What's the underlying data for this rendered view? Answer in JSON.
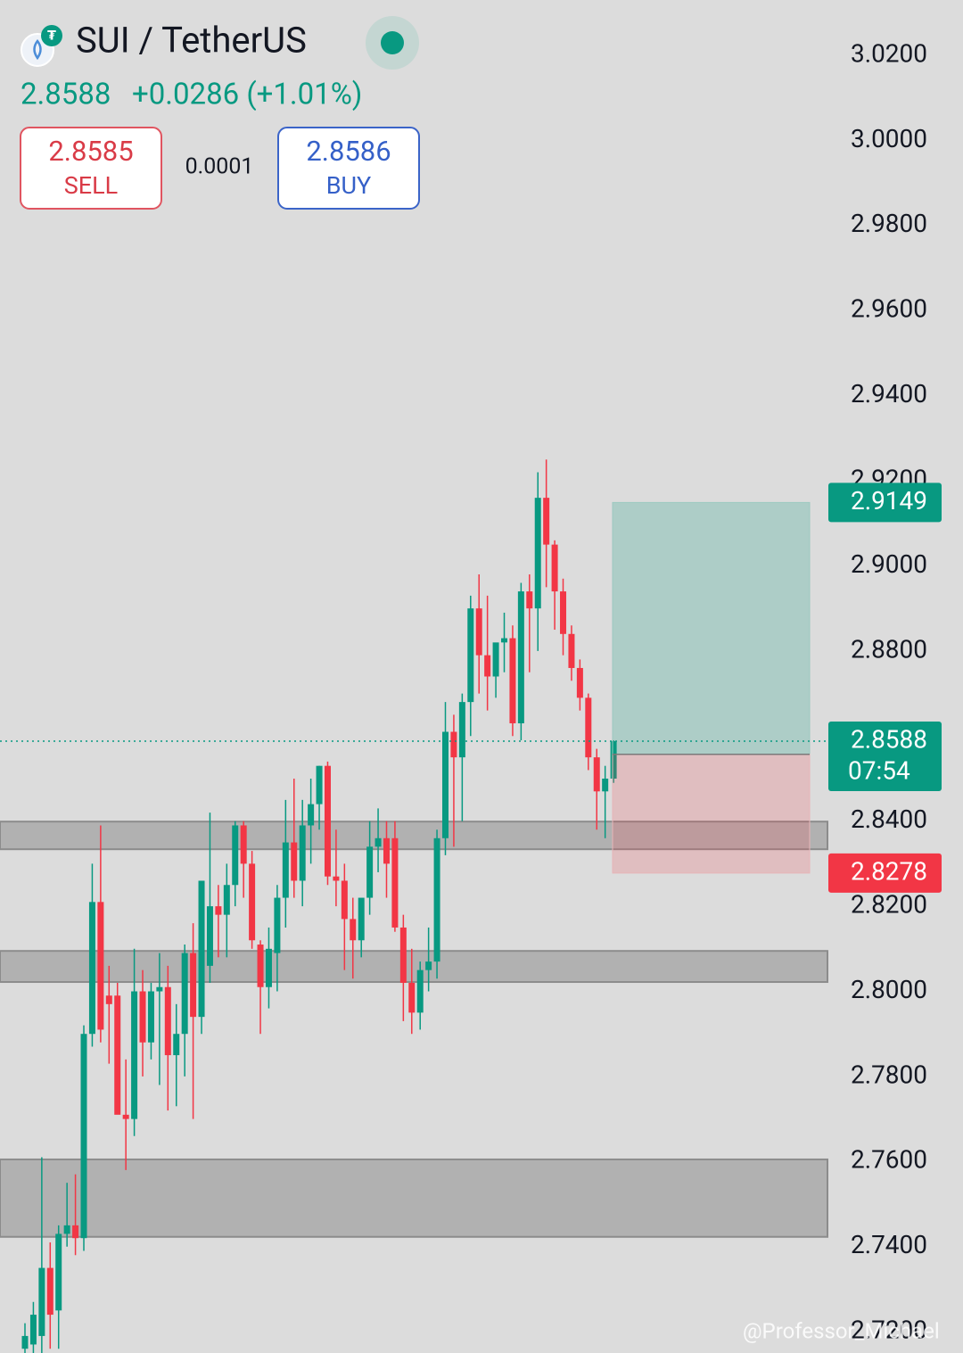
{
  "header": {
    "title": "SUI / TetherUS",
    "last_price": 2.8588,
    "change": "+0.0286 (+1.01%)",
    "sell_price": 2.8585,
    "sell_label": "SELL",
    "spread": "0.0001",
    "buy_price": 2.8586,
    "buy_label": "BUY"
  },
  "chart_data": {
    "type": "candlestick",
    "up_color": "#089981",
    "down_color": "#f23645",
    "ylim": [
      2.715,
      3.033
    ],
    "yticks": [
      {
        "value": 3.02,
        "label": "3.0200"
      },
      {
        "value": 3.0,
        "label": "3.0000"
      },
      {
        "value": 2.98,
        "label": "2.9800"
      },
      {
        "value": 2.96,
        "label": "2.9600"
      },
      {
        "value": 2.94,
        "label": "2.9400"
      },
      {
        "value": 2.92,
        "label": "2.9200"
      },
      {
        "value": 2.9,
        "label": "2.9000"
      },
      {
        "value": 2.88,
        "label": "2.8800"
      },
      {
        "value": 2.86,
        "label": "2.8600"
      },
      {
        "value": 2.84,
        "label": "2.8400"
      },
      {
        "value": 2.82,
        "label": "2.8200"
      },
      {
        "value": 2.8,
        "label": "2.8000"
      },
      {
        "value": 2.78,
        "label": "2.7800"
      },
      {
        "value": 2.76,
        "label": "2.7600"
      },
      {
        "value": 2.74,
        "label": "2.7400"
      },
      {
        "value": 2.72,
        "label": "2.7200"
      }
    ],
    "candles": [
      [
        2.716,
        2.722,
        2.714,
        2.719
      ],
      [
        2.717,
        2.727,
        2.714,
        2.724
      ],
      [
        2.719,
        2.761,
        2.715,
        2.735
      ],
      [
        2.735,
        2.741,
        2.716,
        2.724
      ],
      [
        2.725,
        2.745,
        2.716,
        2.743
      ],
      [
        2.743,
        2.755,
        2.74,
        2.745
      ],
      [
        2.745,
        2.757,
        2.738,
        2.742
      ],
      [
        2.742,
        2.792,
        2.739,
        2.79
      ],
      [
        2.79,
        2.83,
        2.787,
        2.821
      ],
      [
        2.821,
        2.839,
        2.788,
        2.791
      ],
      [
        2.799,
        2.806,
        2.783,
        2.797
      ],
      [
        2.799,
        2.802,
        2.772,
        2.771
      ],
      [
        2.771,
        2.784,
        2.758,
        2.77
      ],
      [
        2.77,
        2.81,
        2.766,
        2.8
      ],
      [
        2.8,
        2.805,
        2.78,
        2.788
      ],
      [
        2.788,
        2.802,
        2.784,
        2.8
      ],
      [
        2.8,
        2.809,
        2.778,
        2.801
      ],
      [
        2.801,
        2.806,
        2.772,
        2.785
      ],
      [
        2.785,
        2.797,
        2.773,
        2.79
      ],
      [
        2.79,
        2.811,
        2.78,
        2.809
      ],
      [
        2.809,
        2.816,
        2.77,
        2.794
      ],
      [
        2.794,
        2.826,
        2.79,
        2.826
      ],
      [
        2.806,
        2.842,
        2.802,
        2.82
      ],
      [
        2.82,
        2.825,
        2.808,
        2.818
      ],
      [
        2.818,
        2.83,
        2.808,
        2.825
      ],
      [
        2.825,
        2.84,
        2.82,
        2.839
      ],
      [
        2.839,
        2.84,
        2.822,
        2.83
      ],
      [
        2.83,
        2.833,
        2.81,
        2.812
      ],
      [
        2.811,
        2.812,
        2.79,
        2.801
      ],
      [
        2.801,
        2.815,
        2.796,
        2.81
      ],
      [
        2.809,
        2.825,
        2.8,
        2.822
      ],
      [
        2.822,
        2.845,
        2.815,
        2.835
      ],
      [
        2.835,
        2.85,
        2.822,
        2.826
      ],
      [
        2.826,
        2.845,
        2.82,
        2.839
      ],
      [
        2.839,
        2.85,
        2.83,
        2.844
      ],
      [
        2.844,
        2.853,
        2.838,
        2.853
      ],
      [
        2.853,
        2.854,
        2.825,
        2.827
      ],
      [
        2.827,
        2.838,
        2.82,
        2.826
      ],
      [
        2.826,
        2.83,
        2.805,
        2.817
      ],
      [
        2.817,
        2.822,
        2.803,
        2.812
      ],
      [
        2.812,
        2.82,
        2.808,
        2.822
      ],
      [
        2.822,
        2.84,
        2.818,
        2.834
      ],
      [
        2.834,
        2.843,
        2.828,
        2.836
      ],
      [
        2.836,
        2.84,
        2.822,
        2.83
      ],
      [
        2.836,
        2.84,
        2.814,
        2.815
      ],
      [
        2.815,
        2.818,
        2.793,
        2.802
      ],
      [
        2.802,
        2.81,
        2.79,
        2.795
      ],
      [
        2.795,
        2.807,
        2.791,
        2.805
      ],
      [
        2.805,
        2.815,
        2.8,
        2.807
      ],
      [
        2.807,
        2.838,
        2.803,
        2.836
      ],
      [
        2.836,
        2.868,
        2.832,
        2.861
      ],
      [
        2.861,
        2.865,
        2.834,
        2.855
      ],
      [
        2.855,
        2.87,
        2.84,
        2.868
      ],
      [
        2.868,
        2.893,
        2.86,
        2.89
      ],
      [
        2.89,
        2.898,
        2.87,
        2.879
      ],
      [
        2.879,
        2.893,
        2.866,
        2.874
      ],
      [
        2.874,
        2.88,
        2.869,
        2.882
      ],
      [
        2.882,
        2.889,
        2.875,
        2.883
      ],
      [
        2.883,
        2.886,
        2.86,
        2.863
      ],
      [
        2.863,
        2.896,
        2.859,
        2.894
      ],
      [
        2.894,
        2.898,
        2.875,
        2.89
      ],
      [
        2.89,
        2.922,
        2.88,
        2.916
      ],
      [
        2.916,
        2.925,
        2.895,
        2.905
      ],
      [
        2.905,
        2.906,
        2.885,
        2.894
      ],
      [
        2.894,
        2.897,
        2.879,
        2.884
      ],
      [
        2.884,
        2.886,
        2.873,
        2.876
      ],
      [
        2.876,
        2.878,
        2.866,
        2.869
      ],
      [
        2.869,
        2.87,
        2.852,
        2.855
      ],
      [
        2.855,
        2.857,
        2.838,
        2.847
      ],
      [
        2.847,
        2.853,
        2.836,
        2.85
      ],
      [
        2.85,
        2.859,
        2.849,
        2.8588
      ]
    ],
    "zones": [
      {
        "top": 2.8399,
        "bottom": 2.8334
      },
      {
        "top": 2.8095,
        "bottom": 2.8022
      },
      {
        "top": 2.7605,
        "bottom": 2.7423
      }
    ],
    "position": {
      "target": 2.9149,
      "entry": 2.8557,
      "stop": 2.8278
    },
    "last_price": 2.8588,
    "countdown": "07:54"
  },
  "watermark": "@Professor_Michael"
}
